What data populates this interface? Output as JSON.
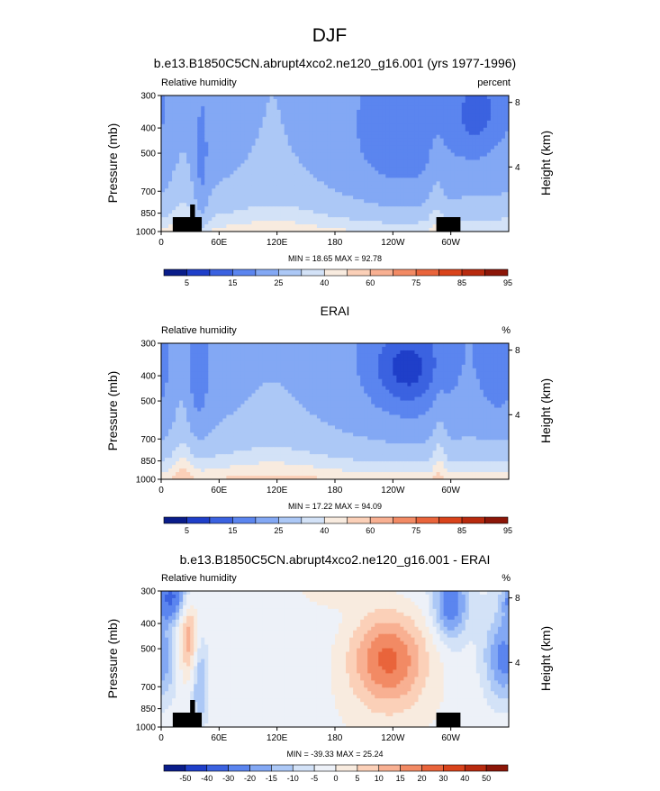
{
  "main_title": "DJF",
  "chart_data": [
    {
      "type": "heatmap",
      "title": "b.e13.B1850C5CN.abrupt4xco2.ne120_g16.001 (yrs 1977-1996)",
      "left_label": "Relative humidity",
      "units": "percent",
      "ylabel": "Pressure (mb)",
      "ylabel_right": "Height (km)",
      "y_ticks": [
        "300",
        "400",
        "500",
        "700",
        "850",
        "1000"
      ],
      "y_right_ticks": [
        "8",
        "4"
      ],
      "x_ticks": [
        "0",
        "60E",
        "120E",
        "180",
        "120W",
        "60W"
      ],
      "stats": "MIN =  18.65  MAX =  92.78",
      "ylim": [
        1000,
        300
      ],
      "colorbar_labels": [
        "5",
        "15",
        "25",
        "40",
        "60",
        "75",
        "85",
        "95"
      ],
      "colorbar_colors": [
        "#0a1d8a",
        "#1f3fc9",
        "#3b62e0",
        "#5b85ef",
        "#83a8f4",
        "#acc8f6",
        "#d3e2f7",
        "#f8ebdf",
        "#fbd0b8",
        "#f8b092",
        "#f28a64",
        "#e9643b",
        "#d9431b",
        "#b82a0e",
        "#8c1608"
      ],
      "field": "model"
    },
    {
      "type": "heatmap",
      "title": "ERAI",
      "left_label": "Relative humidity",
      "units": "%",
      "ylabel": "Pressure (mb)",
      "ylabel_right": "Height (km)",
      "y_ticks": [
        "300",
        "400",
        "500",
        "700",
        "850",
        "1000"
      ],
      "y_right_ticks": [
        "8",
        "4"
      ],
      "x_ticks": [
        "0",
        "60E",
        "120E",
        "180",
        "120W",
        "60W"
      ],
      "stats": "MIN =  17.22  MAX =  94.09",
      "ylim": [
        1000,
        300
      ],
      "colorbar_labels": [
        "5",
        "15",
        "25",
        "40",
        "60",
        "75",
        "85",
        "95"
      ],
      "colorbar_colors": [
        "#0a1d8a",
        "#1f3fc9",
        "#3b62e0",
        "#5b85ef",
        "#83a8f4",
        "#acc8f6",
        "#d3e2f7",
        "#f8ebdf",
        "#fbd0b8",
        "#f8b092",
        "#f28a64",
        "#e9643b",
        "#d9431b",
        "#b82a0e",
        "#8c1608"
      ],
      "field": "obs"
    },
    {
      "type": "heatmap",
      "title": "b.e13.B1850C5CN.abrupt4xco2.ne120_g16.001 - ERAI",
      "left_label": "Relative humidity",
      "units": "%",
      "ylabel": "Pressure (mb)",
      "ylabel_right": "Height (km)",
      "y_ticks": [
        "300",
        "400",
        "500",
        "700",
        "850",
        "1000"
      ],
      "y_right_ticks": [
        "8",
        "4"
      ],
      "x_ticks": [
        "0",
        "60E",
        "120E",
        "180",
        "120W",
        "60W"
      ],
      "stats": "MIN = -39.33  MAX =  25.24",
      "ylim": [
        1000,
        300
      ],
      "colorbar_labels": [
        "-50",
        "-40",
        "-30",
        "-20",
        "-15",
        "-10",
        "-5",
        "0",
        "5",
        "10",
        "15",
        "20",
        "30",
        "40",
        "50"
      ],
      "colorbar_colors": [
        "#0a1d8a",
        "#1f3fc9",
        "#3b62e0",
        "#5b85ef",
        "#83a8f4",
        "#acc8f6",
        "#d3e2f7",
        "#edf1f8",
        "#f8ebdf",
        "#fbd0b8",
        "#f8b092",
        "#f28a64",
        "#e9643b",
        "#d9431b",
        "#b82a0e",
        "#8c1608"
      ],
      "field": "diff"
    }
  ]
}
